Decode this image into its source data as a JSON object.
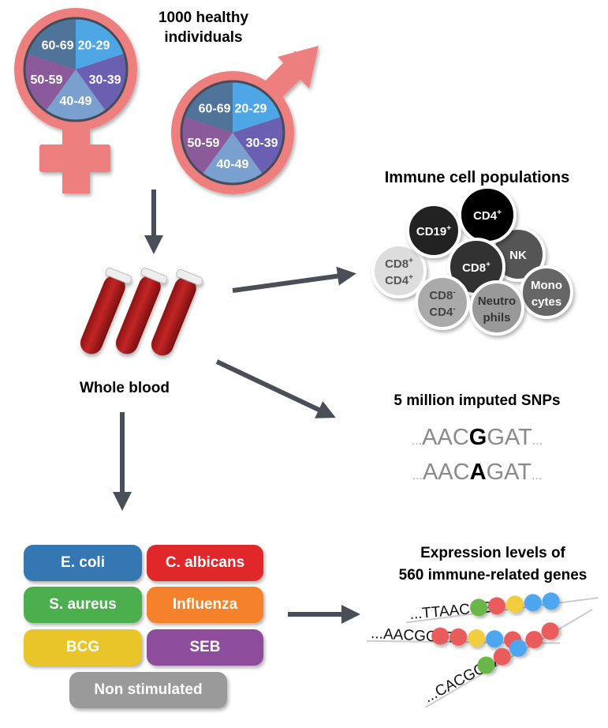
{
  "title": {
    "line1": "1000 healthy",
    "line2": "individuals"
  },
  "age_groups": [
    "20-29",
    "30-39",
    "40-49",
    "50-59",
    "60-69"
  ],
  "age_colors": [
    "#4ea6e6",
    "#6a5fb0",
    "#7aa0cf",
    "#8a5a9a",
    "#50739a"
  ],
  "symbol_color": "#ee7f7f",
  "arrow_color": "#4a4f57",
  "blood_label": "Whole blood",
  "immune": {
    "title": "Immune cell populations",
    "cells": [
      {
        "label": "CD19",
        "sup": "+"
      },
      {
        "label": "CD4",
        "sup": "+"
      },
      {
        "label": "NK",
        "sup": ""
      },
      {
        "label": "CD8",
        "sup": "+"
      },
      {
        "label": "CD8",
        "sup": "+",
        "label2": "CD4",
        "sup2": "+"
      },
      {
        "label": "CD8",
        "sup": "-",
        "label2": "CD4",
        "sup2": "-"
      },
      {
        "label": "Neutro",
        "label2": "phils"
      },
      {
        "label": "Mono",
        "label2": "cytes"
      }
    ]
  },
  "snp": {
    "title": "5 million imputed SNPs",
    "seq1": {
      "pre": "...",
      "left": "AAC",
      "allele": "G",
      "right": "GAT",
      "post": "..."
    },
    "seq2": {
      "pre": "...",
      "left": "AAC",
      "allele": "A",
      "right": "GAT",
      "post": "..."
    }
  },
  "stimuli": [
    {
      "label": "E. coli",
      "color": "#3477b3"
    },
    {
      "label": "C. albicans",
      "color": "#e0282b"
    },
    {
      "label": "S. aureus",
      "color": "#4caf4e"
    },
    {
      "label": "Influenza",
      "color": "#f5822a"
    },
    {
      "label": "BCG",
      "color": "#e9c52a"
    },
    {
      "label": "SEB",
      "color": "#8e4c9d"
    },
    {
      "label": "Non stimulated",
      "color": "#9a9a9a"
    }
  ],
  "expression": {
    "title1": "Expression levels of",
    "title2": "560 immune-related genes",
    "seqs": [
      "...TTAACGG",
      "...AACGGAT",
      "...CACGCAA"
    ],
    "bead_colors": {
      "green": "#6ab64a",
      "red": "#e85c5c",
      "yellow": "#f2cd3c",
      "blue": "#4ea6ee"
    }
  }
}
